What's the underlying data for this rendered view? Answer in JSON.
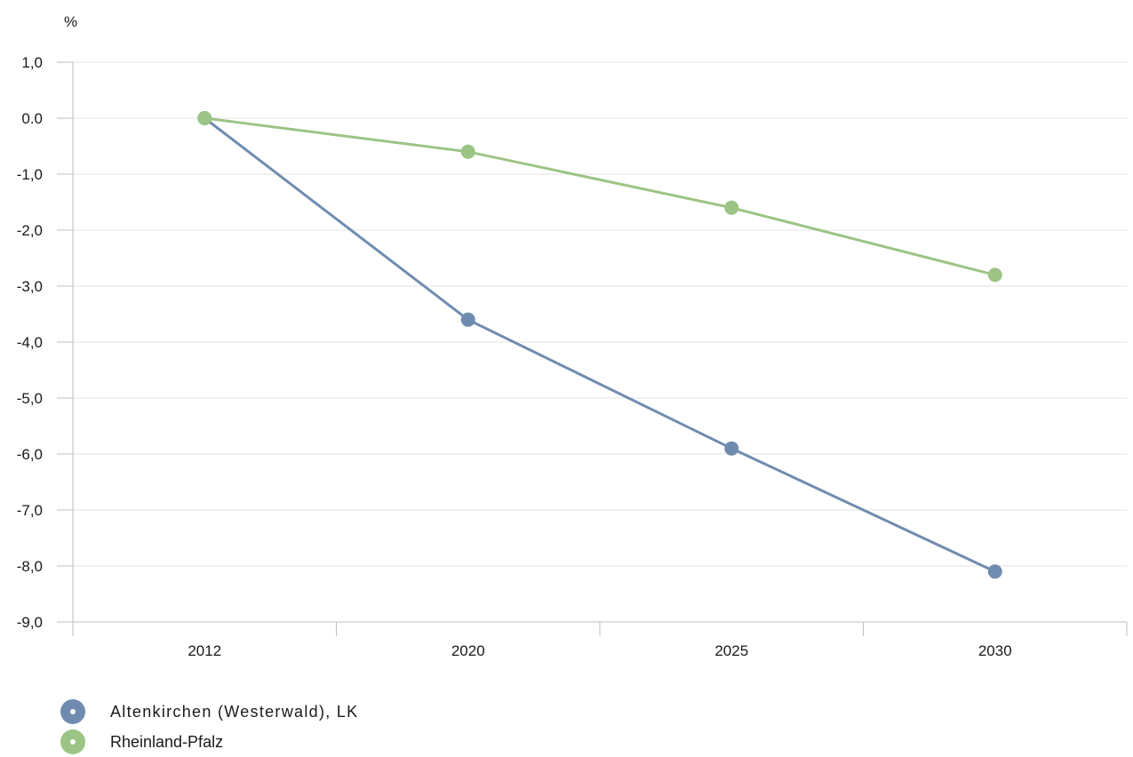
{
  "chart_data": {
    "type": "line",
    "ylabel": "%",
    "categories": [
      "2012",
      "2020",
      "2025",
      "2030"
    ],
    "y_ticks": [
      "1,0",
      "0.0",
      "-1,0",
      "-2,0",
      "-3,0",
      "-4,0",
      "-5,0",
      "-6,0",
      "-7,0",
      "-8,0",
      "-9,0"
    ],
    "ylim": [
      -9,
      1
    ],
    "grid": true,
    "legend_position": "bottom-left",
    "series": [
      {
        "name": "Altenkirchen (Westerwald), LK",
        "color": "#6f8cb0",
        "values": [
          0.0,
          -3.6,
          -5.9,
          -8.1
        ]
      },
      {
        "name": "Rheinland-Pfalz",
        "color": "#9cc484",
        "values": [
          0.0,
          -0.6,
          -1.6,
          -2.8
        ]
      }
    ]
  }
}
